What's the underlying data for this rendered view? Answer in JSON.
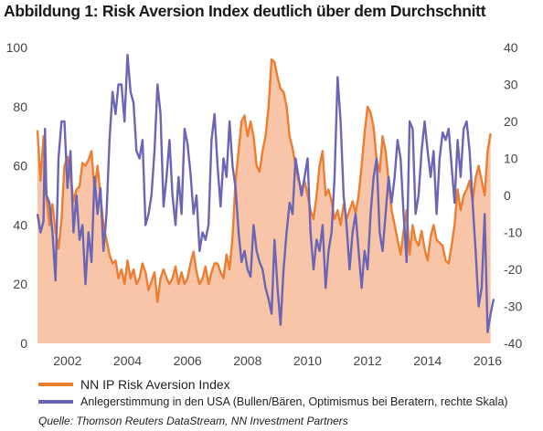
{
  "title": "Abbildung 1: Risk Aversion Index deutlich über dem Durchschnitt",
  "source": "Quelle: Thomson Reuters DataStream, NN Investment Partners",
  "colors": {
    "orange_line": "#ED7D31",
    "orange_fill": "#F8C5A8",
    "purple_line": "#6B65B5"
  },
  "chart_data": {
    "type": "area",
    "x_range": [
      2001.0,
      2016.2
    ],
    "x_ticks": [
      "2002",
      "2004",
      "2006",
      "2008",
      "2010",
      "2012",
      "2014",
      "2016"
    ],
    "left_axis": {
      "ylim": [
        0,
        100
      ],
      "ticks": [
        "0",
        "20",
        "40",
        "60",
        "80",
        "100"
      ]
    },
    "right_axis": {
      "ylim": [
        -40,
        40
      ],
      "ticks": [
        "-40",
        "-30",
        "-20",
        "-10",
        "0",
        "10",
        "20",
        "30",
        "40"
      ]
    },
    "legend_position": "bottom",
    "grid": false,
    "series": [
      {
        "name": "NN IP Risk Aversion Index",
        "axis": "left",
        "style": "line+area",
        "points": [
          [
            2001.0,
            72
          ],
          [
            2001.1,
            55
          ],
          [
            2001.2,
            70
          ],
          [
            2001.3,
            50
          ],
          [
            2001.4,
            40
          ],
          [
            2001.5,
            47
          ],
          [
            2001.6,
            38
          ],
          [
            2001.7,
            32
          ],
          [
            2001.8,
            42
          ],
          [
            2001.9,
            60
          ],
          [
            2002.0,
            63
          ],
          [
            2002.1,
            57
          ],
          [
            2002.2,
            48
          ],
          [
            2002.3,
            52
          ],
          [
            2002.4,
            53
          ],
          [
            2002.5,
            61
          ],
          [
            2002.6,
            60
          ],
          [
            2002.7,
            62
          ],
          [
            2002.8,
            65
          ],
          [
            2002.9,
            52
          ],
          [
            2003.0,
            60
          ],
          [
            2003.1,
            50
          ],
          [
            2003.2,
            40
          ],
          [
            2003.3,
            35
          ],
          [
            2003.4,
            30
          ],
          [
            2003.5,
            27
          ],
          [
            2003.6,
            28
          ],
          [
            2003.7,
            22
          ],
          [
            2003.8,
            25
          ],
          [
            2003.9,
            20
          ],
          [
            2004.0,
            28
          ],
          [
            2004.1,
            22
          ],
          [
            2004.2,
            25
          ],
          [
            2004.3,
            20
          ],
          [
            2004.4,
            22
          ],
          [
            2004.5,
            27
          ],
          [
            2004.6,
            24
          ],
          [
            2004.7,
            18
          ],
          [
            2004.8,
            21
          ],
          [
            2004.9,
            24
          ],
          [
            2005.0,
            14
          ],
          [
            2005.1,
            22
          ],
          [
            2005.2,
            25
          ],
          [
            2005.3,
            22
          ],
          [
            2005.4,
            20
          ],
          [
            2005.5,
            22
          ],
          [
            2005.6,
            26
          ],
          [
            2005.7,
            20
          ],
          [
            2005.8,
            24
          ],
          [
            2005.9,
            20
          ],
          [
            2006.0,
            22
          ],
          [
            2006.1,
            27
          ],
          [
            2006.2,
            31
          ],
          [
            2006.3,
            24
          ],
          [
            2006.4,
            20
          ],
          [
            2006.5,
            22
          ],
          [
            2006.6,
            26
          ],
          [
            2006.7,
            20
          ],
          [
            2006.8,
            24
          ],
          [
            2006.9,
            27
          ],
          [
            2007.0,
            27
          ],
          [
            2007.1,
            24
          ],
          [
            2007.2,
            22
          ],
          [
            2007.3,
            30
          ],
          [
            2007.4,
            25
          ],
          [
            2007.5,
            36
          ],
          [
            2007.6,
            55
          ],
          [
            2007.7,
            65
          ],
          [
            2007.8,
            75
          ],
          [
            2007.9,
            77
          ],
          [
            2008.0,
            70
          ],
          [
            2008.1,
            75
          ],
          [
            2008.2,
            70
          ],
          [
            2008.3,
            60
          ],
          [
            2008.4,
            58
          ],
          [
            2008.5,
            65
          ],
          [
            2008.6,
            70
          ],
          [
            2008.7,
            80
          ],
          [
            2008.8,
            96
          ],
          [
            2008.9,
            95
          ],
          [
            2009.0,
            90
          ],
          [
            2009.1,
            86
          ],
          [
            2009.2,
            85
          ],
          [
            2009.3,
            80
          ],
          [
            2009.4,
            70
          ],
          [
            2009.5,
            66
          ],
          [
            2009.6,
            60
          ],
          [
            2009.7,
            55
          ],
          [
            2009.8,
            52
          ],
          [
            2009.9,
            55
          ],
          [
            2010.0,
            50
          ],
          [
            2010.1,
            45
          ],
          [
            2010.2,
            42
          ],
          [
            2010.3,
            50
          ],
          [
            2010.4,
            60
          ],
          [
            2010.5,
            65
          ],
          [
            2010.6,
            50
          ],
          [
            2010.7,
            52
          ],
          [
            2010.8,
            48
          ],
          [
            2010.9,
            42
          ],
          [
            2011.0,
            45
          ],
          [
            2011.1,
            40
          ],
          [
            2011.2,
            47
          ],
          [
            2011.3,
            42
          ],
          [
            2011.4,
            45
          ],
          [
            2011.5,
            48
          ],
          [
            2011.6,
            44
          ],
          [
            2011.7,
            50
          ],
          [
            2011.8,
            60
          ],
          [
            2011.9,
            71
          ],
          [
            2012.0,
            80
          ],
          [
            2012.1,
            78
          ],
          [
            2012.2,
            73
          ],
          [
            2012.3,
            62
          ],
          [
            2012.4,
            58
          ],
          [
            2012.5,
            70
          ],
          [
            2012.6,
            65
          ],
          [
            2012.7,
            55
          ],
          [
            2012.8,
            45
          ],
          [
            2012.9,
            40
          ],
          [
            2013.0,
            35
          ],
          [
            2013.1,
            30
          ],
          [
            2013.2,
            38
          ],
          [
            2013.3,
            45
          ],
          [
            2013.4,
            30
          ],
          [
            2013.5,
            40
          ],
          [
            2013.6,
            35
          ],
          [
            2013.7,
            33
          ],
          [
            2013.8,
            38
          ],
          [
            2013.9,
            32
          ],
          [
            2014.0,
            28
          ],
          [
            2014.1,
            36
          ],
          [
            2014.2,
            40
          ],
          [
            2014.3,
            35
          ],
          [
            2014.4,
            34
          ],
          [
            2014.5,
            33
          ],
          [
            2014.6,
            28
          ],
          [
            2014.7,
            27
          ],
          [
            2014.8,
            33
          ],
          [
            2014.9,
            40
          ],
          [
            2015.0,
            52
          ],
          [
            2015.1,
            45
          ],
          [
            2015.2,
            50
          ],
          [
            2015.3,
            52
          ],
          [
            2015.4,
            55
          ],
          [
            2015.5,
            48
          ],
          [
            2015.6,
            56
          ],
          [
            2015.7,
            60
          ],
          [
            2015.8,
            55
          ],
          [
            2015.9,
            50
          ],
          [
            2016.0,
            65
          ],
          [
            2016.1,
            71
          ]
        ]
      },
      {
        "name": "Anlegerstimmung in den USA (Bullen/Bären, Optimismus bei Beratern, rechte Skala)",
        "axis": "right",
        "style": "line",
        "points": [
          [
            2001.0,
            -5
          ],
          [
            2001.1,
            -10
          ],
          [
            2001.2,
            -7
          ],
          [
            2001.25,
            18
          ],
          [
            2001.3,
            0
          ],
          [
            2001.4,
            -2
          ],
          [
            2001.5,
            -10
          ],
          [
            2001.6,
            -23
          ],
          [
            2001.7,
            10
          ],
          [
            2001.8,
            20
          ],
          [
            2001.9,
            20
          ],
          [
            2002.0,
            2
          ],
          [
            2002.1,
            12
          ],
          [
            2002.2,
            -10
          ],
          [
            2002.3,
            0
          ],
          [
            2002.4,
            -12
          ],
          [
            2002.5,
            -8
          ],
          [
            2002.6,
            -24
          ],
          [
            2002.7,
            -10
          ],
          [
            2002.8,
            -18
          ],
          [
            2002.9,
            5
          ],
          [
            2003.0,
            -5
          ],
          [
            2003.1,
            2
          ],
          [
            2003.2,
            -15
          ],
          [
            2003.3,
            -5
          ],
          [
            2003.4,
            15
          ],
          [
            2003.5,
            28
          ],
          [
            2003.6,
            22
          ],
          [
            2003.7,
            30
          ],
          [
            2003.8,
            30
          ],
          [
            2003.9,
            20
          ],
          [
            2004.0,
            38
          ],
          [
            2004.1,
            28
          ],
          [
            2004.2,
            25
          ],
          [
            2004.3,
            12
          ],
          [
            2004.4,
            10
          ],
          [
            2004.5,
            15
          ],
          [
            2004.6,
            -8
          ],
          [
            2004.7,
            -5
          ],
          [
            2004.8,
            0
          ],
          [
            2004.9,
            12
          ],
          [
            2005.0,
            30
          ],
          [
            2005.1,
            22
          ],
          [
            2005.2,
            -3
          ],
          [
            2005.3,
            5
          ],
          [
            2005.4,
            15
          ],
          [
            2005.5,
            0
          ],
          [
            2005.6,
            -8
          ],
          [
            2005.7,
            5
          ],
          [
            2005.8,
            -5
          ],
          [
            2005.9,
            18
          ],
          [
            2006.0,
            14
          ],
          [
            2006.1,
            6
          ],
          [
            2006.2,
            -5
          ],
          [
            2006.3,
            0
          ],
          [
            2006.4,
            -15
          ],
          [
            2006.5,
            -10
          ],
          [
            2006.6,
            -12
          ],
          [
            2006.7,
            -8
          ],
          [
            2006.8,
            15
          ],
          [
            2006.9,
            22
          ],
          [
            2007.0,
            8
          ],
          [
            2007.1,
            -3
          ],
          [
            2007.2,
            10
          ],
          [
            2007.3,
            5
          ],
          [
            2007.4,
            20
          ],
          [
            2007.5,
            8
          ],
          [
            2007.6,
            2
          ],
          [
            2007.7,
            -10
          ],
          [
            2007.8,
            -18
          ],
          [
            2007.9,
            -15
          ],
          [
            2008.0,
            -20
          ],
          [
            2008.1,
            -22
          ],
          [
            2008.2,
            -8
          ],
          [
            2008.3,
            -15
          ],
          [
            2008.4,
            -18
          ],
          [
            2008.5,
            -20
          ],
          [
            2008.6,
            -25
          ],
          [
            2008.7,
            -28
          ],
          [
            2008.8,
            -32
          ],
          [
            2008.9,
            -12
          ],
          [
            2009.0,
            -25
          ],
          [
            2009.1,
            -35
          ],
          [
            2009.2,
            -20
          ],
          [
            2009.3,
            -10
          ],
          [
            2009.4,
            -2
          ],
          [
            2009.5,
            -5
          ],
          [
            2009.6,
            10
          ],
          [
            2009.7,
            5
          ],
          [
            2009.8,
            0
          ],
          [
            2009.9,
            5
          ],
          [
            2010.0,
            10
          ],
          [
            2010.1,
            -10
          ],
          [
            2010.2,
            -20
          ],
          [
            2010.3,
            -12
          ],
          [
            2010.4,
            -15
          ],
          [
            2010.5,
            -8
          ],
          [
            2010.6,
            -25
          ],
          [
            2010.7,
            -15
          ],
          [
            2010.8,
            -10
          ],
          [
            2010.9,
            5
          ],
          [
            2011.0,
            32
          ],
          [
            2011.1,
            20
          ],
          [
            2011.2,
            0
          ],
          [
            2011.3,
            -8
          ],
          [
            2011.4,
            -20
          ],
          [
            2011.5,
            -10
          ],
          [
            2011.6,
            -5
          ],
          [
            2011.7,
            -15
          ],
          [
            2011.8,
            -25
          ],
          [
            2011.9,
            -15
          ],
          [
            2012.0,
            -20
          ],
          [
            2012.1,
            -5
          ],
          [
            2012.2,
            5
          ],
          [
            2012.3,
            10
          ],
          [
            2012.4,
            -10
          ],
          [
            2012.5,
            -15
          ],
          [
            2012.6,
            -5
          ],
          [
            2012.7,
            5
          ],
          [
            2012.8,
            -2
          ],
          [
            2012.9,
            5
          ],
          [
            2013.0,
            15
          ],
          [
            2013.1,
            10
          ],
          [
            2013.2,
            -5
          ],
          [
            2013.3,
            -18
          ],
          [
            2013.4,
            20
          ],
          [
            2013.5,
            18
          ],
          [
            2013.6,
            -5
          ],
          [
            2013.7,
            0
          ],
          [
            2013.8,
            12
          ],
          [
            2013.9,
            20
          ],
          [
            2014.0,
            12
          ],
          [
            2014.1,
            5
          ],
          [
            2014.2,
            12
          ],
          [
            2014.3,
            -5
          ],
          [
            2014.4,
            10
          ],
          [
            2014.5,
            17
          ],
          [
            2014.6,
            15
          ],
          [
            2014.7,
            18
          ],
          [
            2014.8,
            8
          ],
          [
            2014.9,
            -2
          ],
          [
            2015.0,
            15
          ],
          [
            2015.1,
            5
          ],
          [
            2015.2,
            18
          ],
          [
            2015.3,
            20
          ],
          [
            2015.4,
            12
          ],
          [
            2015.5,
            -2
          ],
          [
            2015.6,
            -15
          ],
          [
            2015.7,
            -30
          ],
          [
            2015.8,
            -25
          ],
          [
            2015.9,
            -5
          ],
          [
            2016.0,
            -37
          ],
          [
            2016.1,
            -32
          ],
          [
            2016.2,
            -28
          ]
        ]
      }
    ]
  }
}
